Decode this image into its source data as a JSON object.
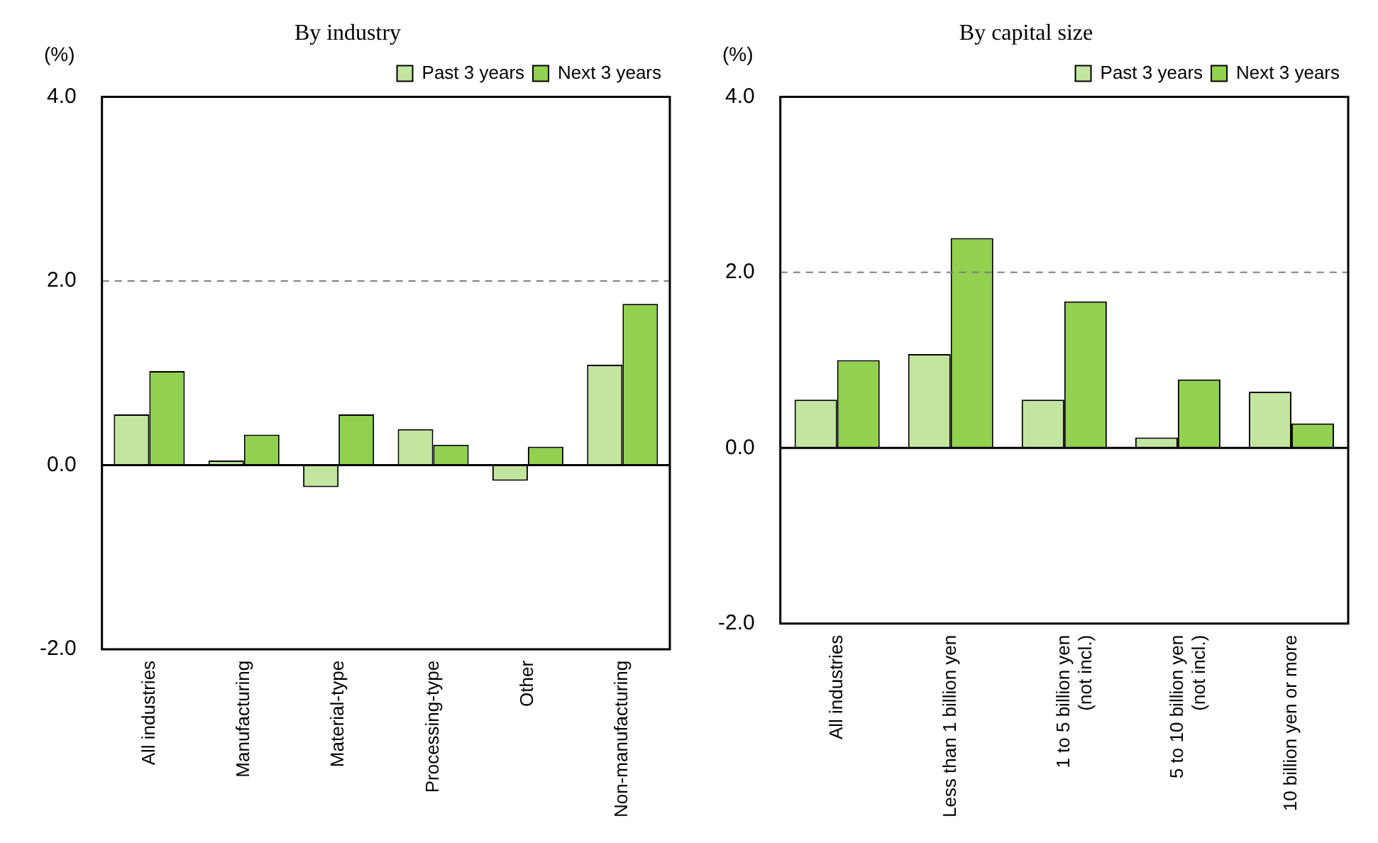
{
  "chart_data": [
    {
      "type": "bar",
      "title": "By industry",
      "ylabel": "(%)",
      "categories": [
        "All industries",
        "Manufacturing",
        "Material-type",
        "Processing-type",
        "Other",
        "Non-manufacturing"
      ],
      "series": [
        {
          "name": "Past 3 years",
          "color": "#c4e59f",
          "values": [
            0.55,
            0.05,
            -0.24,
            0.39,
            -0.17,
            1.09
          ]
        },
        {
          "name": "Next 3 years",
          "color": "#92d050",
          "values": [
            1.02,
            0.33,
            0.55,
            0.22,
            0.2,
            1.75
          ]
        }
      ],
      "ylim": [
        -2,
        4
      ],
      "yticks": [
        {
          "value": -2,
          "label": "-2.0"
        },
        {
          "value": 0,
          "label": "0.0"
        },
        {
          "value": 2,
          "label": "2.0"
        },
        {
          "value": 4,
          "label": "4.0"
        }
      ],
      "ref_lines": [
        {
          "axis": "y",
          "value": 2,
          "color": "#808080",
          "line_style": "dashed"
        }
      ],
      "grid": false,
      "legend": "top right"
    },
    {
      "type": "bar",
      "title": "By capital size",
      "ylabel": "(%)",
      "categories": [
        "All industries",
        "Less than 1 billion yen",
        "1 to 5 billion yen (not incl.)",
        "5 to 10 billion yen (not incl.)",
        "10 billion yen or more"
      ],
      "series": [
        {
          "name": "Past 3 years",
          "color": "#c4e59f",
          "values": [
            0.55,
            1.07,
            0.55,
            0.12,
            0.64
          ]
        },
        {
          "name": "Next 3 years",
          "color": "#92d050",
          "values": [
            1.0,
            2.39,
            1.67,
            0.78,
            0.28
          ]
        }
      ],
      "ylim": [
        -2,
        4
      ],
      "yticks": [
        {
          "value": -2,
          "label": "-2.0"
        },
        {
          "value": 0,
          "label": "0.0"
        },
        {
          "value": 2,
          "label": "2.0"
        },
        {
          "value": 4,
          "label": "4.0"
        }
      ],
      "ref_lines": [
        {
          "axis": "y",
          "value": 2,
          "color": "#808080",
          "line_style": "dashed"
        }
      ],
      "grid": false,
      "legend": "top right"
    }
  ]
}
